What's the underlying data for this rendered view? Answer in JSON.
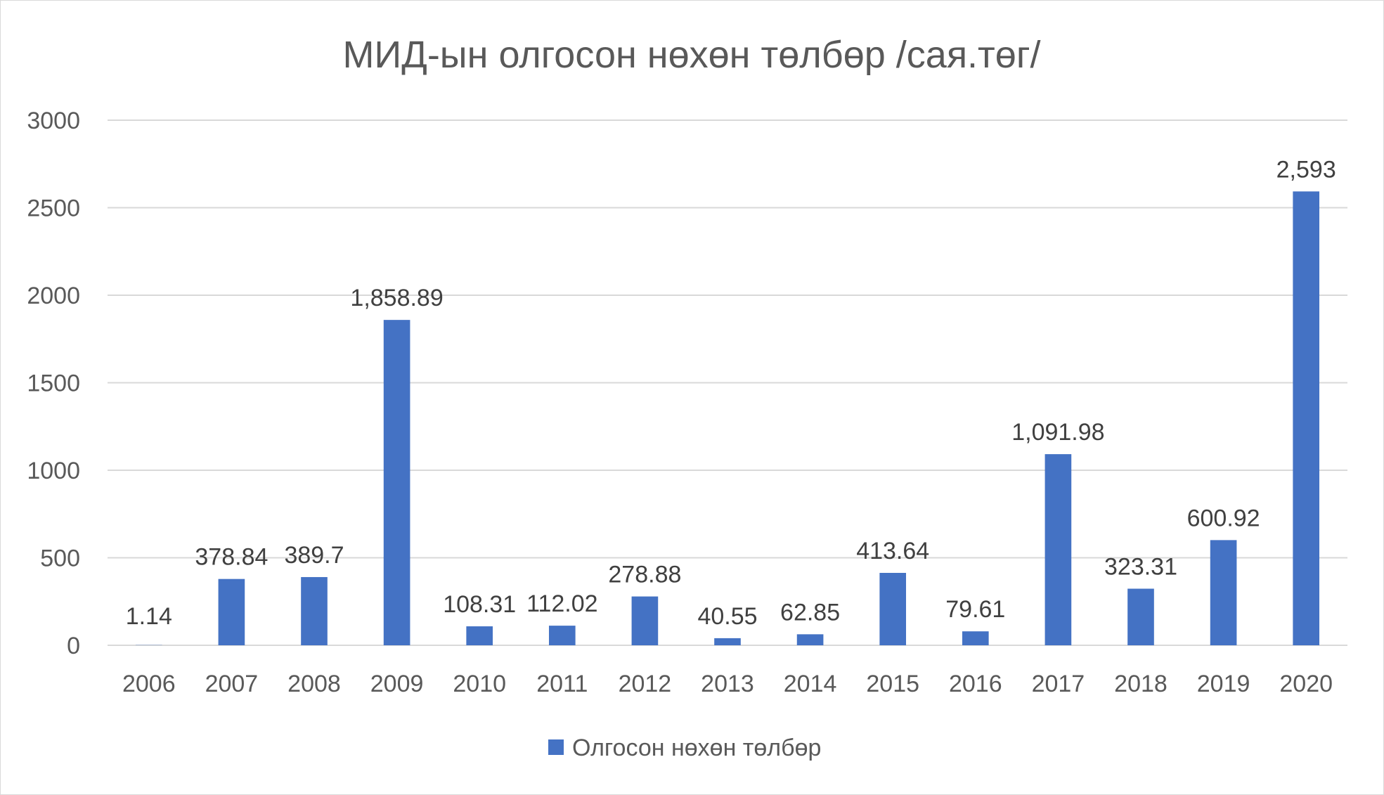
{
  "chart_data": {
    "type": "bar",
    "title": "МИД-ын олгосон нөхөн төлбөр /сая.төг/",
    "categories": [
      "2006",
      "2007",
      "2008",
      "2009",
      "2010",
      "2011",
      "2012",
      "2013",
      "2014",
      "2015",
      "2016",
      "2017",
      "2018",
      "2019",
      "2020"
    ],
    "series": [
      {
        "name": "Олгосон нөхөн төлбөр",
        "values": [
          1.14,
          378.84,
          389.7,
          1858.89,
          108.31,
          112.02,
          278.88,
          40.55,
          62.85,
          413.64,
          79.61,
          1091.98,
          323.31,
          600.92,
          2593
        ],
        "data_labels": [
          "1.14",
          "378.84",
          "389.7",
          "1,858.89",
          "108.31",
          "112.02",
          "278.88",
          "40.55",
          "62.85",
          "413.64",
          "79.61",
          "1,091.98",
          "323.31",
          "600.92",
          "2,593"
        ],
        "color": "#4472c4"
      }
    ],
    "ylim": [
      0,
      3000
    ],
    "yticks": [
      "0",
      "500",
      "1000",
      "1500",
      "2000",
      "2500",
      "3000"
    ],
    "grid": true,
    "legend_position": "bottom"
  }
}
